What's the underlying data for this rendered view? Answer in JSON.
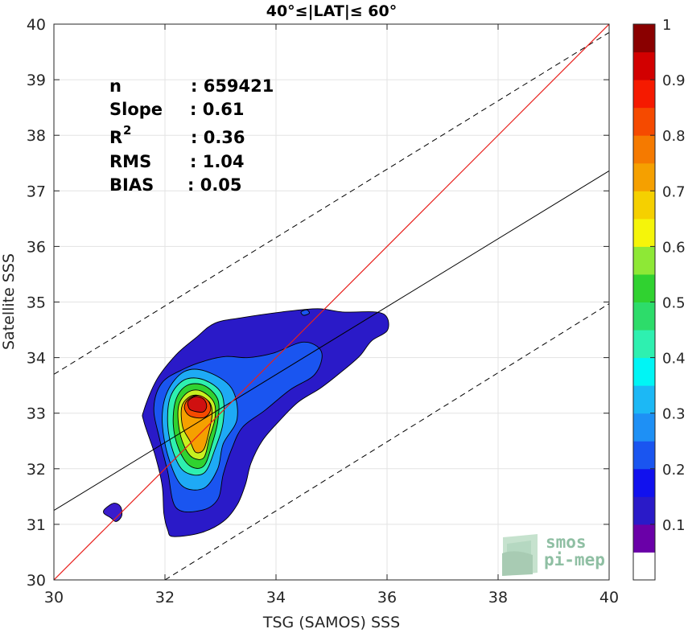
{
  "chart_data": {
    "type": "contour",
    "title": "40°≤|LAT|≤ 60°",
    "xlabel": "TSG (SAMOS) SSS",
    "ylabel": "Satellite SSS",
    "xlim": [
      30,
      40
    ],
    "ylim": [
      30,
      40
    ],
    "xticks": [
      30,
      32,
      34,
      36,
      38,
      40
    ],
    "yticks": [
      30,
      31,
      32,
      33,
      34,
      35,
      36,
      37,
      38,
      39,
      40
    ],
    "grid": true,
    "stats": [
      {
        "label": "n",
        "value": ": 659421"
      },
      {
        "label": "Slope",
        "value": ": 0.61"
      },
      {
        "label": "R",
        "sup": "2",
        "value": ": 0.36"
      },
      {
        "label": "RMS",
        "value": ": 1.04"
      },
      {
        "label": "BIAS",
        "value": ": 0.05"
      }
    ],
    "lines": {
      "identity": {
        "color": "#e8201c",
        "x": [
          30,
          40
        ],
        "y": [
          30,
          40
        ]
      },
      "regression": {
        "color": "#000000",
        "x": [
          30,
          40
        ],
        "y": [
          31.25,
          37.36
        ]
      },
      "upper_bound": {
        "style": "dashed",
        "x": [
          30,
          40
        ],
        "y": [
          33.7,
          39.85
        ]
      },
      "lower_bound": {
        "style": "dashed",
        "x": [
          32,
          40
        ],
        "y": [
          30,
          34.97
        ]
      }
    },
    "colorbar": {
      "ticks": [
        "0.1",
        "0.2",
        "0.3",
        "0.4",
        "0.5",
        "0.6",
        "0.7",
        "0.8",
        "0.9",
        "1"
      ],
      "range": [
        0,
        1
      ],
      "colors": [
        "#ffffff",
        "#6a00a8",
        "#2a1ac8",
        "#1111ee",
        "#1a55f0",
        "#1e90f5",
        "#1cb8f5",
        "#00f5f5",
        "#2ef0b0",
        "#2ddc6a",
        "#30d230",
        "#8ee836",
        "#f5f50a",
        "#f5d000",
        "#f5a000",
        "#f57a00",
        "#f54a00",
        "#f51a00",
        "#d20000",
        "#8a0000"
      ]
    },
    "contours": [
      {
        "level": 0.1,
        "color": "#3a1ccc",
        "points": [
          [
            31.02,
            31.12
          ],
          [
            31.12,
            31.05
          ],
          [
            31.22,
            31.15
          ],
          [
            31.2,
            31.32
          ],
          [
            31.08,
            31.38
          ],
          [
            30.92,
            31.28
          ],
          [
            30.9,
            31.2
          ]
        ]
      },
      {
        "level": 0.05,
        "color": "#2a1ac8",
        "points": [
          [
            32.15,
            30.78
          ],
          [
            32.65,
            30.85
          ],
          [
            33.05,
            31.05
          ],
          [
            33.3,
            31.35
          ],
          [
            33.45,
            31.72
          ],
          [
            33.55,
            32.1
          ],
          [
            33.75,
            32.5
          ],
          [
            34.05,
            32.85
          ],
          [
            34.4,
            33.2
          ],
          [
            34.8,
            33.45
          ],
          [
            35.15,
            33.72
          ],
          [
            35.5,
            34.02
          ],
          [
            35.72,
            34.3
          ],
          [
            36.0,
            34.48
          ],
          [
            36.0,
            34.72
          ],
          [
            35.8,
            34.82
          ],
          [
            35.2,
            34.82
          ],
          [
            34.75,
            34.88
          ],
          [
            34.1,
            34.82
          ],
          [
            33.4,
            34.72
          ],
          [
            32.9,
            34.62
          ],
          [
            32.55,
            34.35
          ],
          [
            32.2,
            34.05
          ],
          [
            31.85,
            33.6
          ],
          [
            31.62,
            33.05
          ],
          [
            31.62,
            32.85
          ],
          [
            31.82,
            32.25
          ],
          [
            31.95,
            31.7
          ],
          [
            31.98,
            31.2
          ],
          [
            32.05,
            30.9
          ]
        ]
      },
      {
        "level": 0.2,
        "color": "#1a55f0",
        "points": [
          [
            32.2,
            31.3
          ],
          [
            32.65,
            31.25
          ],
          [
            32.95,
            31.45
          ],
          [
            33.05,
            31.9
          ],
          [
            33.2,
            32.35
          ],
          [
            33.4,
            32.75
          ],
          [
            33.8,
            33.05
          ],
          [
            34.25,
            33.42
          ],
          [
            34.7,
            33.7
          ],
          [
            34.82,
            34.1
          ],
          [
            34.5,
            34.28
          ],
          [
            33.95,
            34.08
          ],
          [
            33.5,
            34.0
          ],
          [
            33.1,
            34.02
          ],
          [
            32.75,
            33.95
          ],
          [
            32.35,
            33.8
          ],
          [
            31.95,
            33.55
          ],
          [
            31.8,
            33.1
          ],
          [
            31.9,
            32.55
          ],
          [
            32.05,
            31.95
          ]
        ]
      },
      {
        "level": 0.3,
        "color": "#1eaaf5",
        "points": [
          [
            32.3,
            31.7
          ],
          [
            32.7,
            31.65
          ],
          [
            32.95,
            32.0
          ],
          [
            33.05,
            32.45
          ],
          [
            33.3,
            32.9
          ],
          [
            33.2,
            33.45
          ],
          [
            32.75,
            33.75
          ],
          [
            32.35,
            33.75
          ],
          [
            32.05,
            33.4
          ],
          [
            31.95,
            32.9
          ],
          [
            32.05,
            32.25
          ]
        ]
      },
      {
        "level": 0.4,
        "color": "#2ef0b0",
        "points": [
          [
            32.35,
            31.95
          ],
          [
            32.7,
            31.92
          ],
          [
            32.9,
            32.35
          ],
          [
            33.05,
            32.85
          ],
          [
            33.02,
            33.35
          ],
          [
            32.7,
            33.6
          ],
          [
            32.35,
            33.6
          ],
          [
            32.1,
            33.3
          ],
          [
            32.05,
            32.8
          ],
          [
            32.15,
            32.3
          ]
        ]
      },
      {
        "level": 0.5,
        "color": "#30d230",
        "points": [
          [
            32.45,
            32.05
          ],
          [
            32.7,
            32.05
          ],
          [
            32.85,
            32.45
          ],
          [
            32.95,
            32.85
          ],
          [
            32.95,
            33.25
          ],
          [
            32.7,
            33.5
          ],
          [
            32.4,
            33.5
          ],
          [
            32.2,
            33.25
          ],
          [
            32.15,
            32.8
          ],
          [
            32.25,
            32.35
          ]
        ]
      },
      {
        "level": 0.6,
        "color": "#c8f020",
        "points": [
          [
            32.5,
            32.2
          ],
          [
            32.7,
            32.2
          ],
          [
            32.8,
            32.55
          ],
          [
            32.9,
            32.9
          ],
          [
            32.88,
            33.2
          ],
          [
            32.65,
            33.4
          ],
          [
            32.42,
            33.38
          ],
          [
            32.25,
            33.15
          ],
          [
            32.25,
            32.75
          ],
          [
            32.35,
            32.4
          ]
        ]
      },
      {
        "level": 0.7,
        "color": "#f5a000",
        "points": [
          [
            32.55,
            32.3
          ],
          [
            32.7,
            32.35
          ],
          [
            32.8,
            32.7
          ],
          [
            32.85,
            33.0
          ],
          [
            32.8,
            33.2
          ],
          [
            32.6,
            33.32
          ],
          [
            32.42,
            33.28
          ],
          [
            32.3,
            33.1
          ],
          [
            32.32,
            32.75
          ],
          [
            32.45,
            32.5
          ]
        ]
      },
      {
        "level": 0.8,
        "color": "#f54a00",
        "points": [
          [
            32.45,
            32.95
          ],
          [
            32.7,
            32.92
          ],
          [
            32.82,
            33.05
          ],
          [
            32.78,
            33.22
          ],
          [
            32.6,
            33.32
          ],
          [
            32.42,
            33.25
          ],
          [
            32.35,
            33.1
          ]
        ]
      },
      {
        "level": 0.9,
        "color": "#d01010",
        "points": [
          [
            32.48,
            33.05
          ],
          [
            32.68,
            33.02
          ],
          [
            32.75,
            33.12
          ],
          [
            32.7,
            33.25
          ],
          [
            32.55,
            33.3
          ],
          [
            32.42,
            33.22
          ],
          [
            32.42,
            33.12
          ]
        ]
      },
      {
        "level": 0.1,
        "color": "#1a55f0",
        "points": [
          [
            34.45,
            34.82
          ],
          [
            34.55,
            34.86
          ],
          [
            34.6,
            34.8
          ],
          [
            34.5,
            34.76
          ]
        ]
      }
    ]
  },
  "logo": {
    "line1": "smos",
    "line2": "pi-mep"
  }
}
